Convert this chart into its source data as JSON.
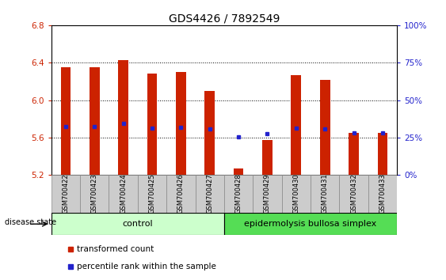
{
  "title": "GDS4426 / 7892549",
  "samples": [
    "GSM700422",
    "GSM700423",
    "GSM700424",
    "GSM700425",
    "GSM700426",
    "GSM700427",
    "GSM700428",
    "GSM700429",
    "GSM700430",
    "GSM700431",
    "GSM700432",
    "GSM700433"
  ],
  "red_values": [
    6.35,
    6.35,
    6.43,
    6.28,
    6.3,
    6.1,
    5.27,
    5.57,
    6.27,
    6.22,
    5.65,
    5.65
  ],
  "blue_values": [
    5.72,
    5.72,
    5.75,
    5.7,
    5.71,
    5.69,
    5.61,
    5.64,
    5.7,
    5.69,
    5.65,
    5.65
  ],
  "ymin": 5.2,
  "ymax": 6.8,
  "yticks": [
    5.2,
    5.6,
    6.0,
    6.4,
    6.8
  ],
  "right_yticks": [
    0,
    25,
    50,
    75,
    100
  ],
  "right_yticklabels": [
    "0%",
    "25%",
    "50%",
    "75%",
    "100%"
  ],
  "bar_color": "#cc2200",
  "blue_color": "#2222cc",
  "n_control": 6,
  "n_disease": 6,
  "control_label": "control",
  "disease_label": "epidermolysis bullosa simplex",
  "disease_state_label": "disease state",
  "control_bg": "#ccffcc",
  "disease_bg": "#55dd55",
  "tick_label_bg": "#cccccc",
  "legend_red_label": "transformed count",
  "legend_blue_label": "percentile rank within the sample",
  "title_fontsize": 10,
  "tick_fontsize": 7.5,
  "bar_width": 0.35
}
